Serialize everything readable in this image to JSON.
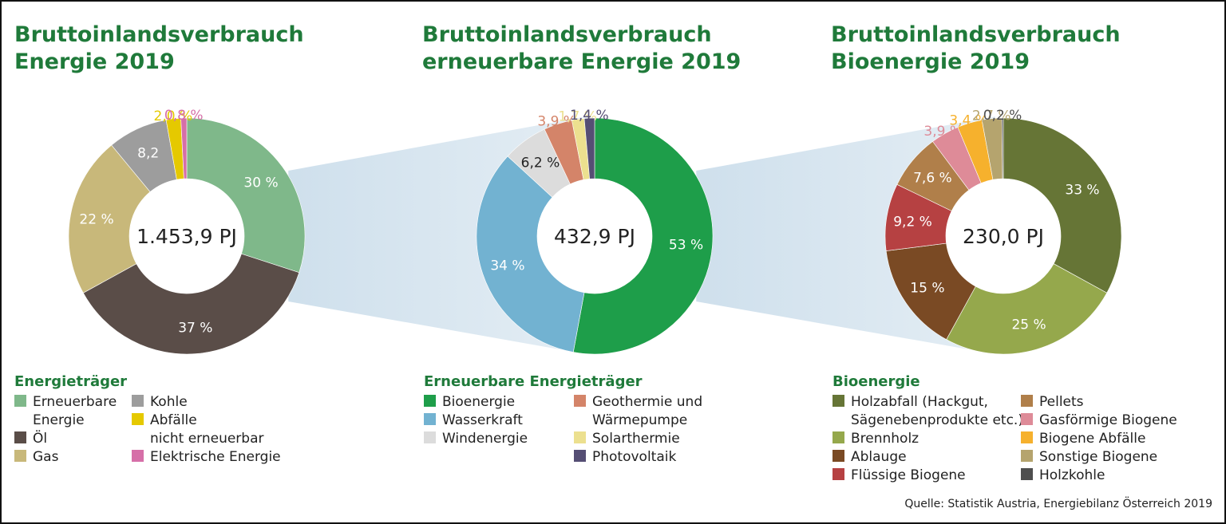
{
  "source": "Quelle: Statistik Austria, Energiebilanz Österreich 2019",
  "chart_data": [
    {
      "type": "pie",
      "title": [
        "Bruttoinlandsverbrauch",
        "Energie 2019"
      ],
      "center": "1.453,9 PJ",
      "legend_title": "Energieträger",
      "slices": [
        {
          "name": "Erneuerbare Energie",
          "legend": [
            "Erneuerbare",
            "Energie"
          ],
          "value": 30,
          "label": "30 %",
          "color": "#7fb88a",
          "pos": "inside"
        },
        {
          "name": "Öl",
          "legend": [
            "Öl"
          ],
          "value": 37,
          "label": "37 %",
          "color": "#5a4d48",
          "pos": "inside"
        },
        {
          "name": "Gas",
          "legend": [
            "Gas"
          ],
          "value": 22,
          "label": "22 %",
          "color": "#c8b87a",
          "pos": "inside"
        },
        {
          "name": "Kohle",
          "legend": [
            "Kohle"
          ],
          "value": 8.2,
          "label": "8,2",
          "color": "#9d9d9d",
          "pos": "inside"
        },
        {
          "name": "Abfälle nicht erneuerbar",
          "legend": [
            "Abfälle",
            "nicht erneuerbar"
          ],
          "value": 2.0,
          "label": "2,0 %",
          "color": "#e5c900",
          "pos": "outside"
        },
        {
          "name": "Elektrische Energie",
          "legend": [
            "Elektrische Energie"
          ],
          "value": 0.8,
          "label": "0,8 %",
          "color": "#d66fa8",
          "pos": "outside"
        }
      ]
    },
    {
      "type": "pie",
      "title": [
        "Bruttoinlandsverbrauch",
        "erneuerbare Energie 2019"
      ],
      "center": "432,9 PJ",
      "legend_title": "Erneuerbare Energieträger",
      "slices": [
        {
          "name": "Bioenergie",
          "legend": [
            "Bioenergie"
          ],
          "value": 53,
          "label": "53 %",
          "color": "#1e9e4a",
          "pos": "inside"
        },
        {
          "name": "Wasserkraft",
          "legend": [
            "Wasserkraft"
          ],
          "value": 34,
          "label": "34 %",
          "color": "#72b2d1",
          "pos": "inside"
        },
        {
          "name": "Windenergie",
          "legend": [
            "Windenergie"
          ],
          "value": 6.2,
          "label": "6,2 %",
          "color": "#dcdcdc",
          "pos": "inside"
        },
        {
          "name": "Geothermie und Wärmepumpe",
          "legend": [
            "Geothermie und",
            "Wärmepumpe"
          ],
          "value": 3.9,
          "label": "3,9 %",
          "color": "#d48469",
          "pos": "outside"
        },
        {
          "name": "Solarthermie",
          "legend": [
            "Solarthermie"
          ],
          "value": 1.7,
          "label": "1,7 %",
          "color": "#ece08f",
          "pos": "outside"
        },
        {
          "name": "Photovoltaik",
          "legend": [
            "Photovoltaik"
          ],
          "value": 1.4,
          "label": "1,4 %",
          "color": "#554e74",
          "pos": "outside"
        }
      ]
    },
    {
      "type": "pie",
      "title": [
        "Bruttoinlandsverbrauch",
        "Bioenergie 2019"
      ],
      "center": "230,0 PJ",
      "legend_title": "Bioenergie",
      "slices": [
        {
          "name": "Holzabfall (Hackgut, Sägenebenprodukte etc.)",
          "legend": [
            "Holzabfall (Hackgut,",
            "Sägenebenprodukte etc.)"
          ],
          "value": 33,
          "label": "33 %",
          "color": "#667536",
          "pos": "inside"
        },
        {
          "name": "Brennholz",
          "legend": [
            "Brennholz"
          ],
          "value": 25,
          "label": "25 %",
          "color": "#95a84c",
          "pos": "inside"
        },
        {
          "name": "Ablauge",
          "legend": [
            "Ablauge"
          ],
          "value": 15,
          "label": "15 %",
          "color": "#7a4a24",
          "pos": "inside"
        },
        {
          "name": "Flüssige Biogene",
          "legend": [
            "Flüssige Biogene"
          ],
          "value": 9.2,
          "label": "9,2 %",
          "color": "#b64142",
          "pos": "inside"
        },
        {
          "name": "Pellets",
          "legend": [
            "Pellets"
          ],
          "value": 7.6,
          "label": "7,6 %",
          "color": "#b07f4a",
          "pos": "inside"
        },
        {
          "name": "Gasförmige Biogene",
          "legend": [
            "Gasförmige Biogene"
          ],
          "value": 3.9,
          "label": "3,9 %",
          "color": "#de8b98",
          "pos": "outside"
        },
        {
          "name": "Biogene Abfälle",
          "legend": [
            "Biogene Abfälle"
          ],
          "value": 3.4,
          "label": "3,4 %",
          "color": "#f6b12d",
          "pos": "outside"
        },
        {
          "name": "Sonstige Biogene",
          "legend": [
            "Sonstige Biogene"
          ],
          "value": 2.7,
          "label": "2,7 %",
          "color": "#b5a46e",
          "pos": "outside"
        },
        {
          "name": "Holzkohle",
          "legend": [
            "Holzkohle"
          ],
          "value": 0.2,
          "label": "0,2 %",
          "color": "#4f4f4f",
          "pos": "outside"
        }
      ]
    }
  ]
}
